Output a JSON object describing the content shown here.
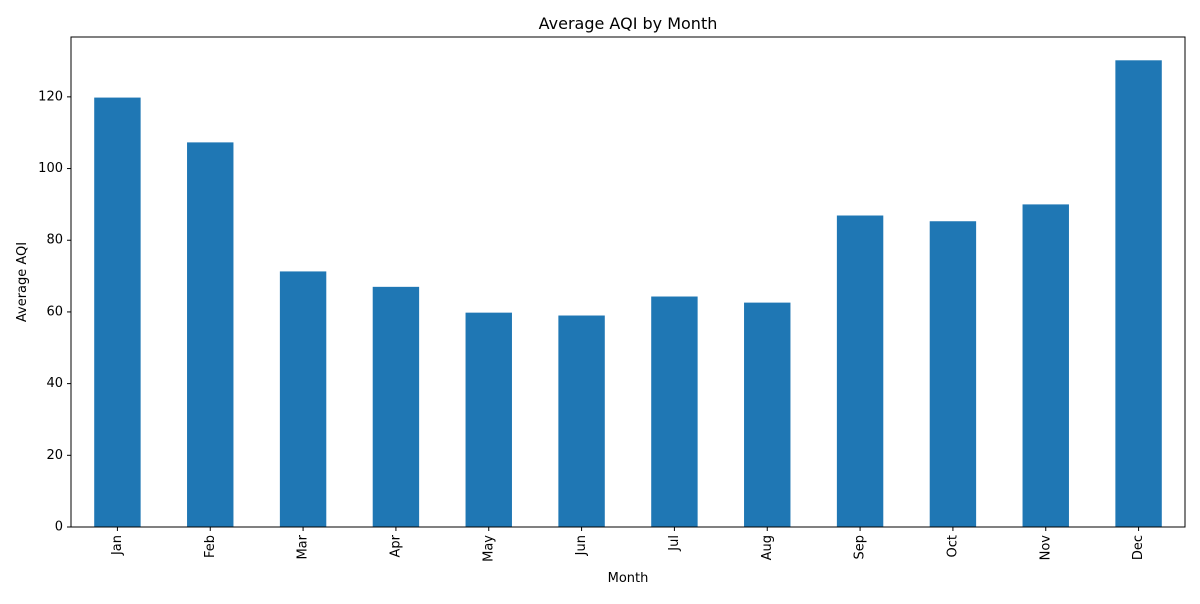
{
  "chart_data": {
    "type": "bar",
    "title": "Average AQI by Month",
    "xlabel": "Month",
    "ylabel": "Average AQI",
    "categories": [
      "Jan",
      "Feb",
      "Mar",
      "Apr",
      "May",
      "Jun",
      "Jul",
      "Aug",
      "Sep",
      "Oct",
      "Nov",
      "Dec"
    ],
    "values": [
      119.8,
      107.3,
      71.3,
      67.0,
      59.8,
      59.0,
      64.3,
      62.6,
      86.9,
      85.3,
      90.0,
      130.2
    ],
    "ylim": [
      0,
      136.7
    ],
    "yticks": [
      0,
      20,
      40,
      60,
      80,
      100,
      120
    ],
    "grid": false,
    "legend": "none",
    "bar_color": "#1f77b4"
  }
}
